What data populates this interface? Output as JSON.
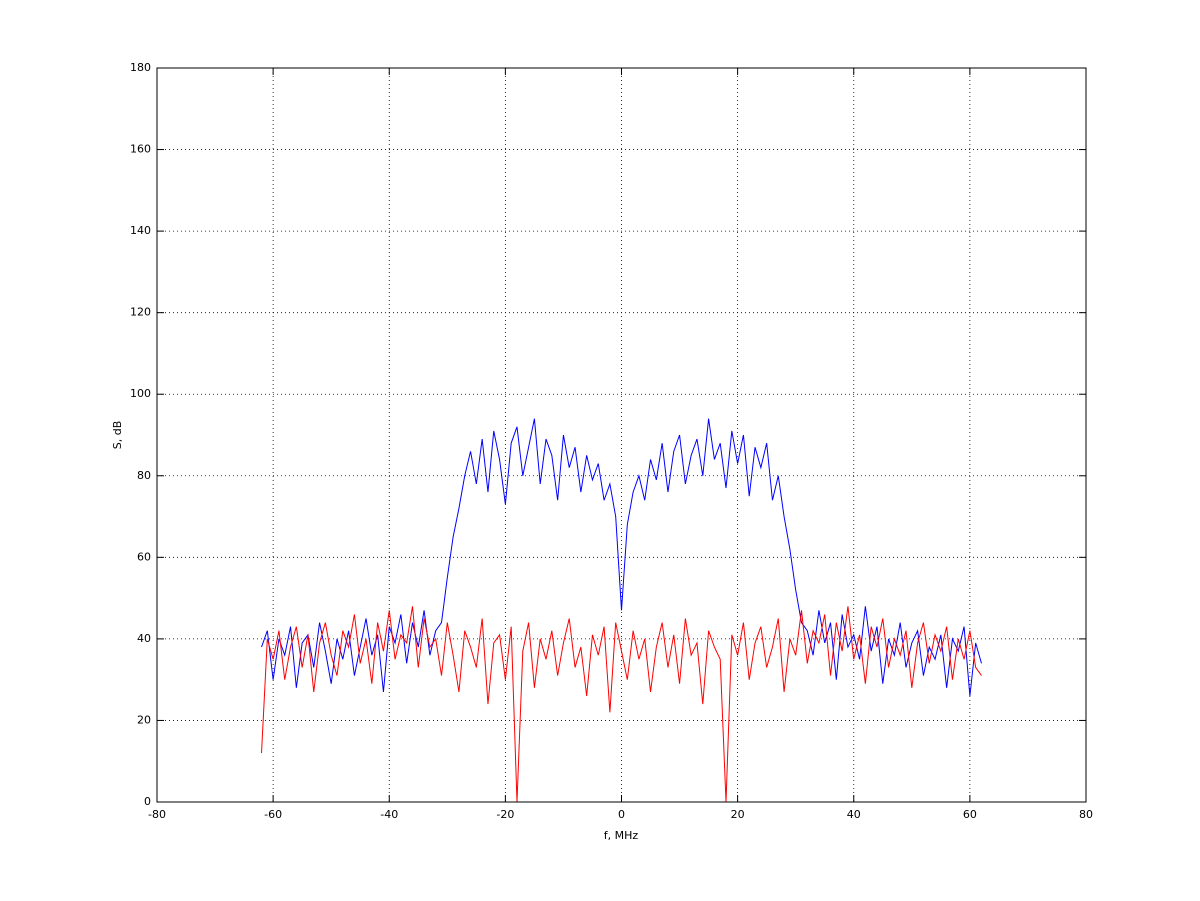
{
  "chart_data": {
    "type": "line",
    "xlabel": "f, MHz",
    "ylabel": "S, dB",
    "x": [
      -62,
      -61,
      -60,
      -59,
      -58,
      -57,
      -56,
      -55,
      -54,
      -53,
      -52,
      -51,
      -50,
      -49,
      -48,
      -47,
      -46,
      -45,
      -44,
      -43,
      -42,
      -41,
      -40,
      -39,
      -38,
      -37,
      -36,
      -35,
      -34,
      -33,
      -32,
      -31,
      -30,
      -29,
      -28,
      -27,
      -26,
      -25,
      -24,
      -23,
      -22,
      -21,
      -20,
      -19,
      -18,
      -17,
      -16,
      -15,
      -14,
      -13,
      -12,
      -11,
      -10,
      -9,
      -8,
      -7,
      -6,
      -5,
      -4,
      -3,
      -2,
      -1,
      0,
      1,
      2,
      3,
      4,
      5,
      6,
      7,
      8,
      9,
      10,
      11,
      12,
      13,
      14,
      15,
      16,
      17,
      18,
      19,
      20,
      21,
      22,
      23,
      24,
      25,
      26,
      27,
      28,
      29,
      30,
      31,
      32,
      33,
      34,
      35,
      36,
      37,
      38,
      39,
      40,
      41,
      42,
      43,
      44,
      45,
      46,
      47,
      48,
      49,
      50,
      51,
      52,
      53,
      54,
      55,
      56,
      57,
      58,
      59,
      60,
      61,
      62
    ],
    "series": [
      {
        "color": "#0000ff",
        "values": [
          38,
          42,
          30,
          40,
          36,
          43,
          28,
          39,
          41,
          33,
          44,
          37,
          29,
          40,
          35,
          42,
          31,
          38,
          45,
          36,
          41,
          27,
          43,
          39,
          46,
          34,
          44,
          38,
          47,
          36,
          42,
          44,
          55,
          65,
          72,
          80,
          86,
          78,
          89,
          76,
          91,
          84,
          73,
          88,
          92,
          80,
          87,
          94,
          78,
          89,
          85,
          74,
          90,
          82,
          87,
          76,
          85,
          79,
          83,
          74,
          78,
          70,
          47,
          68,
          76,
          80,
          74,
          84,
          79,
          88,
          76,
          86,
          90,
          78,
          85,
          89,
          80,
          94,
          84,
          88,
          77,
          91,
          83,
          90,
          75,
          87,
          82,
          88,
          74,
          80,
          70,
          62,
          52,
          44,
          42,
          36,
          47,
          39,
          44,
          30,
          46,
          38,
          41,
          35,
          48,
          37,
          43,
          29,
          40,
          36,
          44,
          33,
          39,
          42,
          31,
          38,
          35,
          41,
          28,
          40,
          37,
          43,
          26,
          39,
          34
        ]
      },
      {
        "color": "#ff0000",
        "values": [
          12,
          40,
          35,
          42,
          30,
          38,
          43,
          33,
          41,
          27,
          39,
          44,
          36,
          31,
          42,
          38,
          46,
          34,
          40,
          29,
          44,
          37,
          47,
          35,
          41,
          39,
          48,
          33,
          45,
          38,
          40,
          31,
          44,
          36,
          27,
          42,
          38,
          33,
          45,
          24,
          39,
          41,
          30,
          43,
          0,
          37,
          44,
          28,
          40,
          35,
          42,
          31,
          39,
          45,
          33,
          38,
          26,
          41,
          36,
          43,
          22,
          44,
          37,
          30,
          42,
          35,
          40,
          27,
          38,
          44,
          33,
          41,
          29,
          45,
          36,
          39,
          24,
          42,
          38,
          35,
          0,
          41,
          36,
          44,
          30,
          39,
          43,
          33,
          38,
          45,
          27,
          40,
          36,
          47,
          34,
          42,
          39,
          46,
          31,
          44,
          37,
          48,
          35,
          41,
          29,
          43,
          38,
          45,
          33,
          40,
          36,
          42,
          28,
          39,
          44,
          34,
          41,
          37,
          43,
          30,
          40,
          35,
          42,
          33,
          31
        ]
      }
    ],
    "xlim": [
      -80,
      80
    ],
    "xticks": [
      -80,
      -60,
      -40,
      -20,
      0,
      20,
      40,
      60,
      80
    ],
    "ylim": [
      0,
      180
    ],
    "yticks": [
      0,
      20,
      40,
      60,
      80,
      100,
      120,
      140,
      160,
      180
    ],
    "grid": true
  }
}
